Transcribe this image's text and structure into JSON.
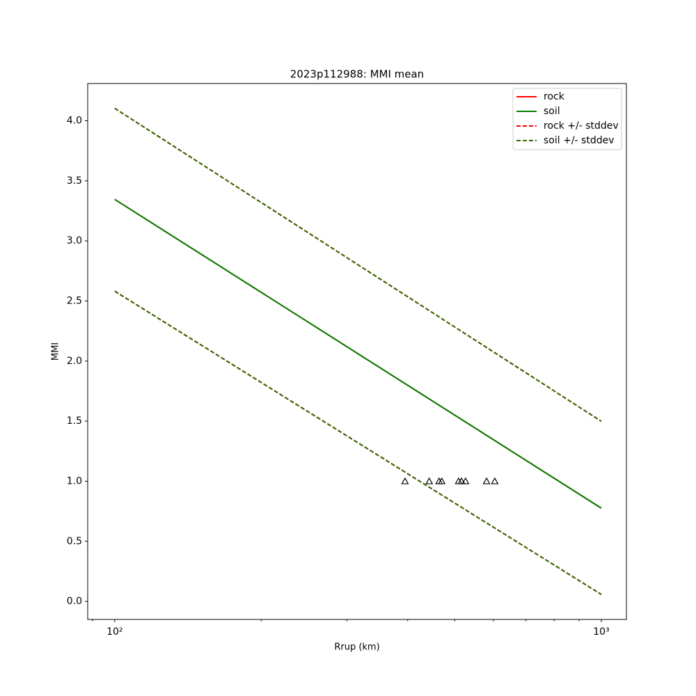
{
  "chart_data": {
    "type": "line",
    "title": "2023p112988: MMI mean",
    "xlabel": "Rrup (km)",
    "ylabel": "MMI",
    "xscale": "log",
    "xlim": [
      88,
      1126
    ],
    "ylim": [
      -0.15,
      4.31
    ],
    "xticks": [
      {
        "value": 100,
        "label": "10²"
      },
      {
        "value": 1000,
        "label": "10³"
      }
    ],
    "xminorticks": [
      90,
      200,
      300,
      400,
      500,
      600,
      700,
      800,
      900
    ],
    "yticks": [
      {
        "value": 0,
        "label": "0.0"
      },
      0.5,
      {
        "value": 1,
        "label": "1.0"
      },
      1.5,
      {
        "value": 2,
        "label": "2.0"
      },
      2.5,
      {
        "value": 3,
        "label": "3.0"
      },
      3.5,
      {
        "value": 4,
        "label": "4.0"
      }
    ],
    "legend": "upper right",
    "x": [
      100,
      1000
    ],
    "series": [
      {
        "name": "rock",
        "color": "#ff0000",
        "style": "solid",
        "values": [
          3.346,
          0.776
        ]
      },
      {
        "name": "soil",
        "color": "#008000",
        "style": "solid",
        "values": [
          3.346,
          0.776
        ]
      },
      {
        "name": "rock +/- stddev",
        "color": "#ff0000",
        "style": "dashed",
        "upper": [
          4.104,
          1.499
        ],
        "lower": [
          2.582,
          0.058
        ]
      },
      {
        "name": "soil +/- stddev",
        "color": "#2e6b00",
        "style": "dashed",
        "upper": [
          4.104,
          1.499
        ],
        "lower": [
          2.582,
          0.058
        ]
      }
    ],
    "stations": {
      "color": "#000000",
      "marker": "triangle",
      "x": [
        395,
        443,
        464,
        470,
        509,
        516,
        526,
        581,
        604
      ],
      "y": [
        1,
        1,
        1,
        1,
        1,
        1,
        1,
        1,
        1
      ]
    }
  }
}
